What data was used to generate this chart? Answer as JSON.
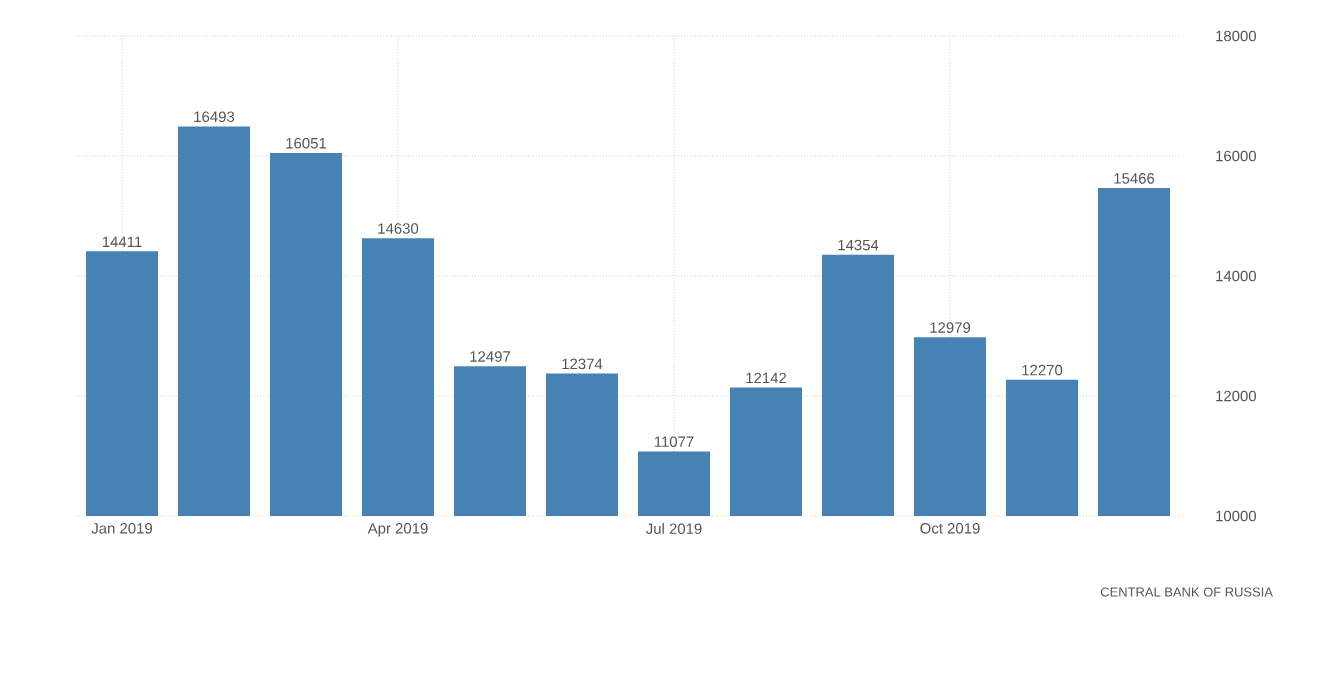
{
  "chart_data": {
    "type": "bar",
    "categories": [
      "Jan 2019",
      null,
      null,
      "Apr 2019",
      null,
      null,
      "Jul 2019",
      null,
      null,
      "Oct 2019",
      null,
      null
    ],
    "values": [
      14411,
      16493,
      16051,
      14630,
      12497,
      12374,
      11077,
      12142,
      14354,
      12979,
      12270,
      15466
    ],
    "color": "#4682b4",
    "ylim": [
      10000,
      18000
    ],
    "yticks": [
      10000,
      12000,
      14000,
      16000,
      18000
    ],
    "grid": true,
    "data_labels": true,
    "annotations": [
      "CENTRAL BANK OF RUSSIA"
    ]
  }
}
